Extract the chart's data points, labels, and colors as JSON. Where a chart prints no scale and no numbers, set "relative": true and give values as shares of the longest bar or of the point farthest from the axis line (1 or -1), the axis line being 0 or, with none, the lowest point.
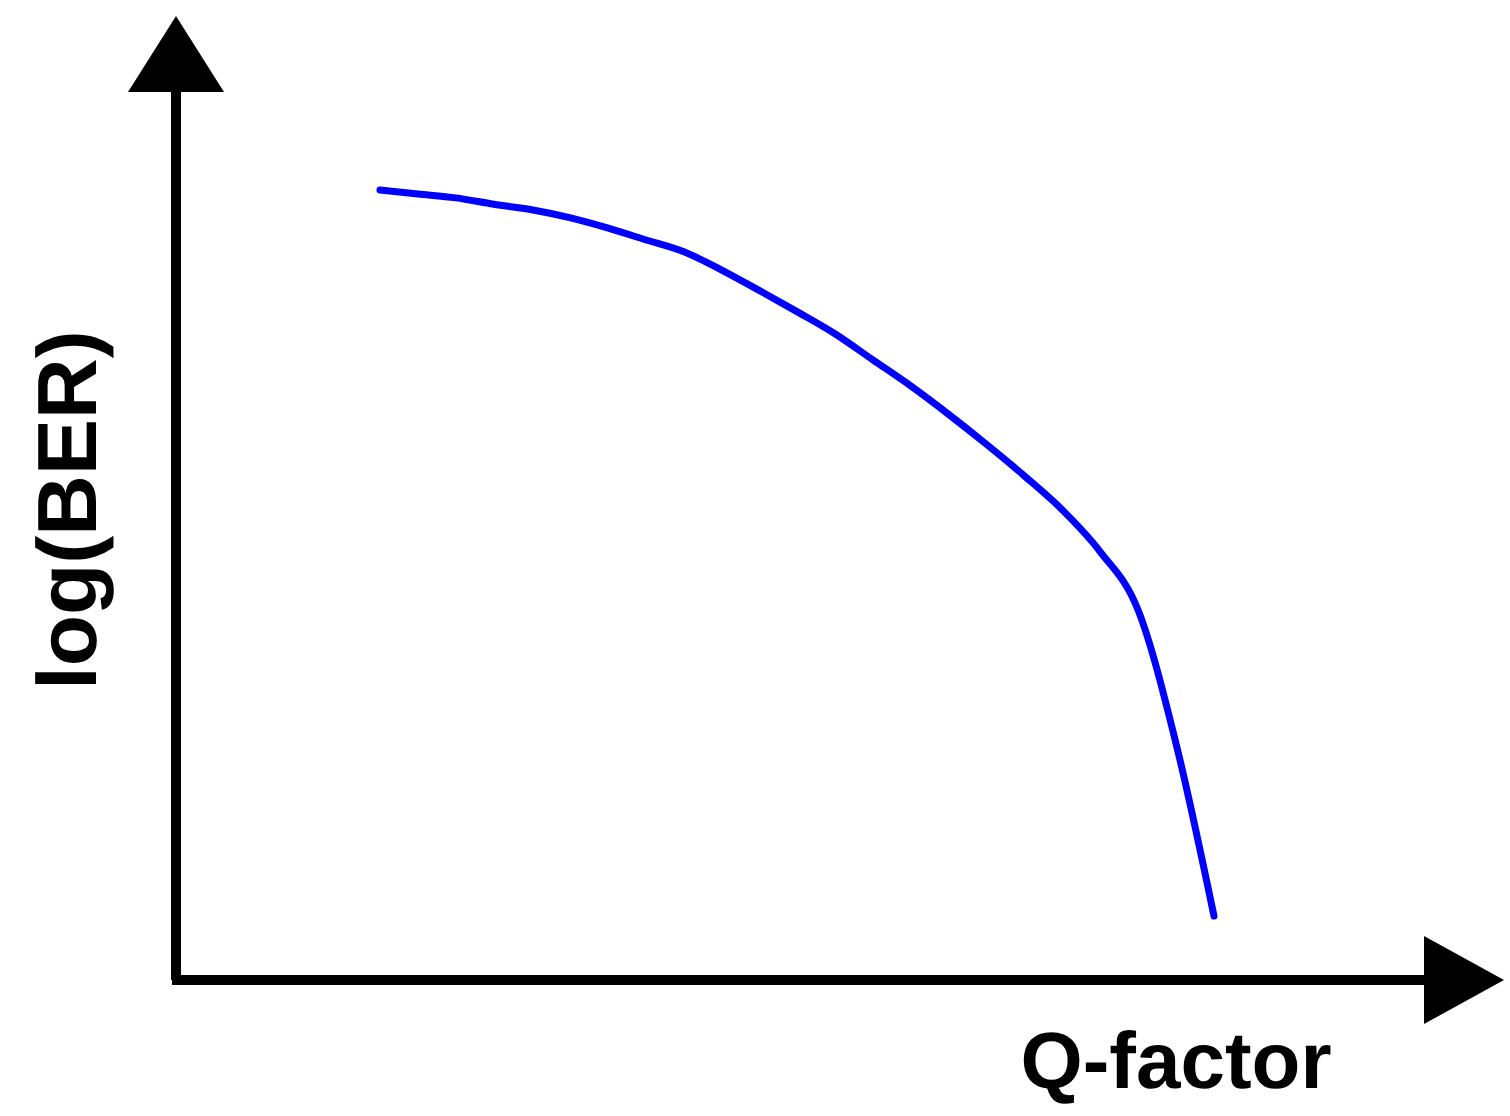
{
  "chart_data": {
    "type": "line",
    "relative": true,
    "xlabel": "Q-factor",
    "ylabel": "log(BER)",
    "color": "#0000ff",
    "categories": [
      null,
      null,
      null,
      null,
      null,
      null,
      null,
      null,
      null,
      null,
      null,
      null,
      null,
      null,
      null,
      null,
      null,
      null,
      null,
      null,
      null,
      null,
      null
    ],
    "values": [
      1,
      0.995,
      0.99,
      0.982,
      0.975,
      0.965,
      0.952,
      0.937,
      0.922,
      0.899,
      0.873,
      0.846,
      0.818,
      0.785,
      0.752,
      0.716,
      0.678,
      0.638,
      0.595,
      0.542,
      0.468,
      0.299,
      0.081
    ]
  }
}
